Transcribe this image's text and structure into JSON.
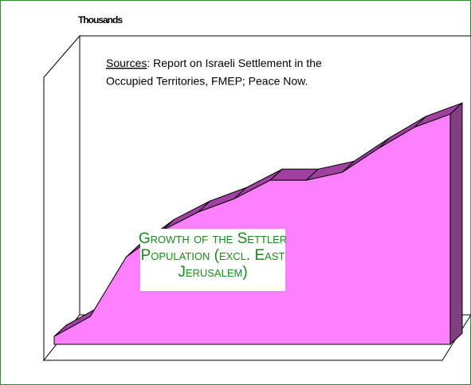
{
  "chart_data": {
    "type": "area",
    "title": [
      "Growth of the Settler",
      "Population (excl. East",
      "Jerusalem)"
    ],
    "y_label": "Thousands",
    "annotation_label": "Sources",
    "annotation_lines": [
      ": Report on Israeli Settlement in the",
      "Occupied Territories, FMEP; Peace Now."
    ],
    "categories": [
      null,
      null,
      null,
      null,
      null,
      null,
      null,
      null,
      null,
      null,
      null,
      null
    ],
    "series": [
      {
        "color": "#ff80ff",
        "top_color": "#a040a0",
        "side_color": "#804080",
        "values": [
          3,
          10.5,
          33,
          43,
          50,
          55,
          62,
          62,
          65,
          74,
          82,
          87
        ]
      }
    ],
    "ylim": [
      0,
      100
    ]
  }
}
